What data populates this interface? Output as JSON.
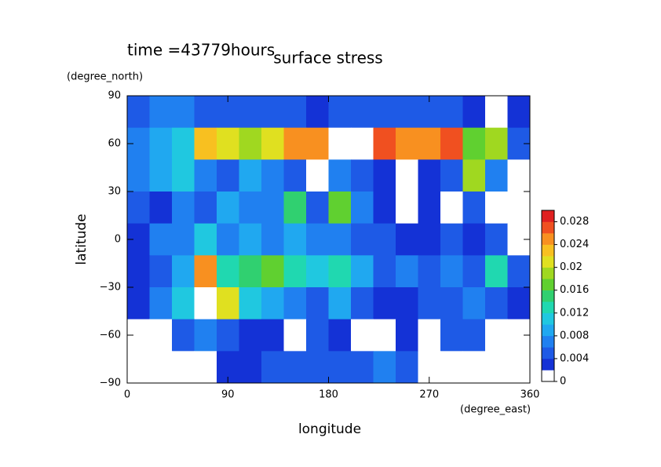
{
  "chart_data": {
    "type": "heatmap",
    "title": "surface stress",
    "subtitle": "time =43779hours",
    "x_label": "longitude",
    "x_units": "(degree_east)",
    "y_label": "latitude",
    "y_units": "(degree_north)",
    "xlim": [
      0,
      360
    ],
    "ylim": [
      -90,
      90
    ],
    "xticks": [
      0,
      90,
      180,
      270,
      360
    ],
    "yticks": [
      {
        "value": -90,
        "label": "−90"
      },
      {
        "value": -60,
        "label": "−60"
      },
      {
        "value": -30,
        "label": "−30"
      },
      0,
      30,
      60,
      90
    ],
    "x": [
      10,
      30,
      50,
      70,
      90,
      110,
      130,
      150,
      170,
      190,
      210,
      230,
      250,
      270,
      290,
      310,
      330,
      350
    ],
    "y": [
      80,
      60,
      40,
      20,
      0,
      -20,
      -40,
      -60,
      -80
    ],
    "z": [
      [
        0.005,
        0.006,
        0.006,
        0.005,
        0.004,
        0.005,
        0.004,
        0.004,
        0.003,
        0.004,
        0.005,
        0.005,
        0.004,
        0.004,
        0.004,
        0.002,
        0.001,
        0.003
      ],
      [
        0.006,
        0.008,
        0.01,
        0.022,
        0.02,
        0.018,
        0.02,
        0.024,
        0.024,
        0.03,
        0.03,
        0.026,
        0.024,
        0.024,
        0.026,
        0.016,
        0.018,
        0.004
      ],
      [
        0.006,
        0.008,
        0.01,
        0.006,
        0.004,
        0.008,
        0.006,
        0.004,
        0.001,
        0.006,
        0.004,
        0.003,
        0.0,
        0.002,
        0.004,
        0.018,
        0.006,
        0.0
      ],
      [
        0.004,
        0.003,
        0.006,
        0.004,
        0.008,
        0.006,
        0.006,
        0.014,
        0.004,
        0.016,
        0.006,
        0.003,
        0.001,
        0.002,
        0.0,
        0.004,
        0.0,
        0.0
      ],
      [
        0.003,
        0.006,
        0.006,
        0.01,
        0.006,
        0.008,
        0.006,
        0.008,
        0.006,
        0.006,
        0.004,
        0.004,
        0.002,
        0.003,
        0.004,
        0.003,
        0.004,
        0.001
      ],
      [
        0.003,
        0.004,
        0.008,
        0.024,
        0.012,
        0.014,
        0.016,
        0.012,
        0.01,
        0.012,
        0.008,
        0.004,
        0.006,
        0.004,
        0.006,
        0.004,
        0.012,
        0.004
      ],
      [
        0.002,
        0.006,
        0.01,
        0.03,
        0.02,
        0.01,
        0.008,
        0.006,
        0.004,
        0.008,
        0.004,
        0.003,
        0.002,
        0.004,
        0.004,
        0.006,
        0.004,
        0.002
      ],
      [
        0.0,
        0.0,
        0.004,
        0.006,
        0.004,
        0.003,
        0.002,
        0.0,
        0.004,
        0.003,
        0.0,
        0.001,
        0.003,
        0.0,
        0.004,
        0.004,
        0.0,
        0.0
      ],
      [
        0.0,
        0.0,
        0.0,
        0.0,
        0.002,
        0.003,
        0.004,
        0.004,
        0.004,
        0.005,
        0.005,
        0.006,
        0.004,
        0.0,
        0.0,
        0.0,
        0.0,
        0.0
      ]
    ],
    "zlim": [
      0,
      0.03
    ],
    "zticks": [
      0,
      0.004,
      0.008,
      0.012,
      0.016,
      0.02,
      0.024,
      0.028
    ],
    "colors": [
      "#ffffff",
      "#1432d6",
      "#1e5ae6",
      "#2080f0",
      "#20a8f0",
      "#20c8e0",
      "#20d8b0",
      "#30d070",
      "#60d030",
      "#a0d820",
      "#e0e020",
      "#f8c020",
      "#f89020",
      "#f05020",
      "#e02020"
    ],
    "over_color": "#ffffff"
  }
}
